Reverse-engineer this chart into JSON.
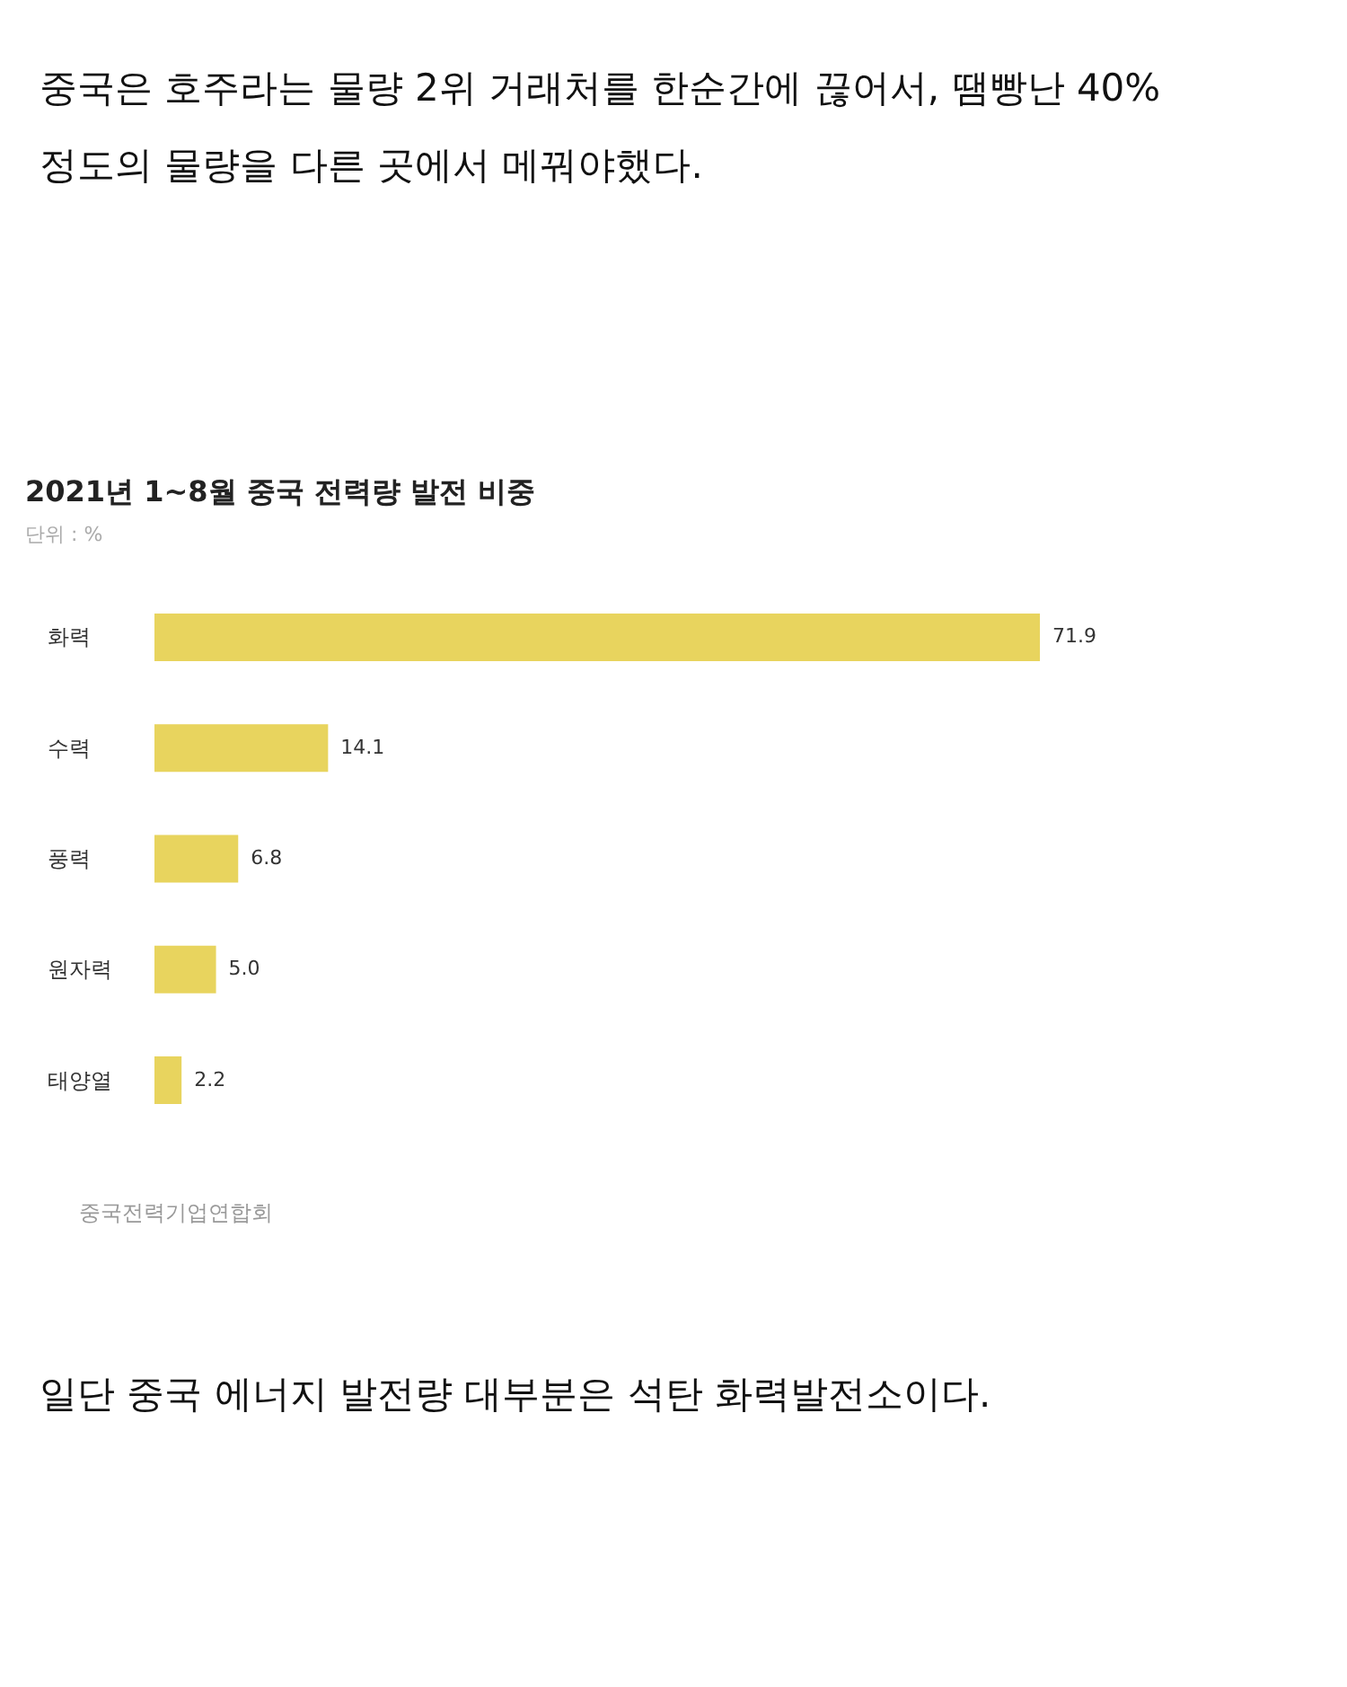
{
  "chart_data": {
    "type": "bar",
    "orientation": "horizontal",
    "title": "2021년 1~8월 중국 전력량 발전 비중",
    "subtitle": "단위 : %",
    "categories": [
      "화력",
      "수력",
      "풍력",
      "원자력",
      "태양열"
    ],
    "values": [
      71.9,
      14.1,
      6.8,
      5.0,
      2.2
    ],
    "value_labels": [
      "71.9",
      "14.1",
      "6.8",
      "5.0",
      "2.2"
    ],
    "color": "#e8d45e",
    "annotations": [
      "중국은 호주라는 물량 2위 거래처를 한순간에 끊어서, 땜빵난 40%정도의 물량을 다른 곳에서 메꿔야했다.",
      "중국전력기업연합회",
      "일단 중국 에너지 발전량 대부분은 석탄 화력발전소이다."
    ]
  }
}
